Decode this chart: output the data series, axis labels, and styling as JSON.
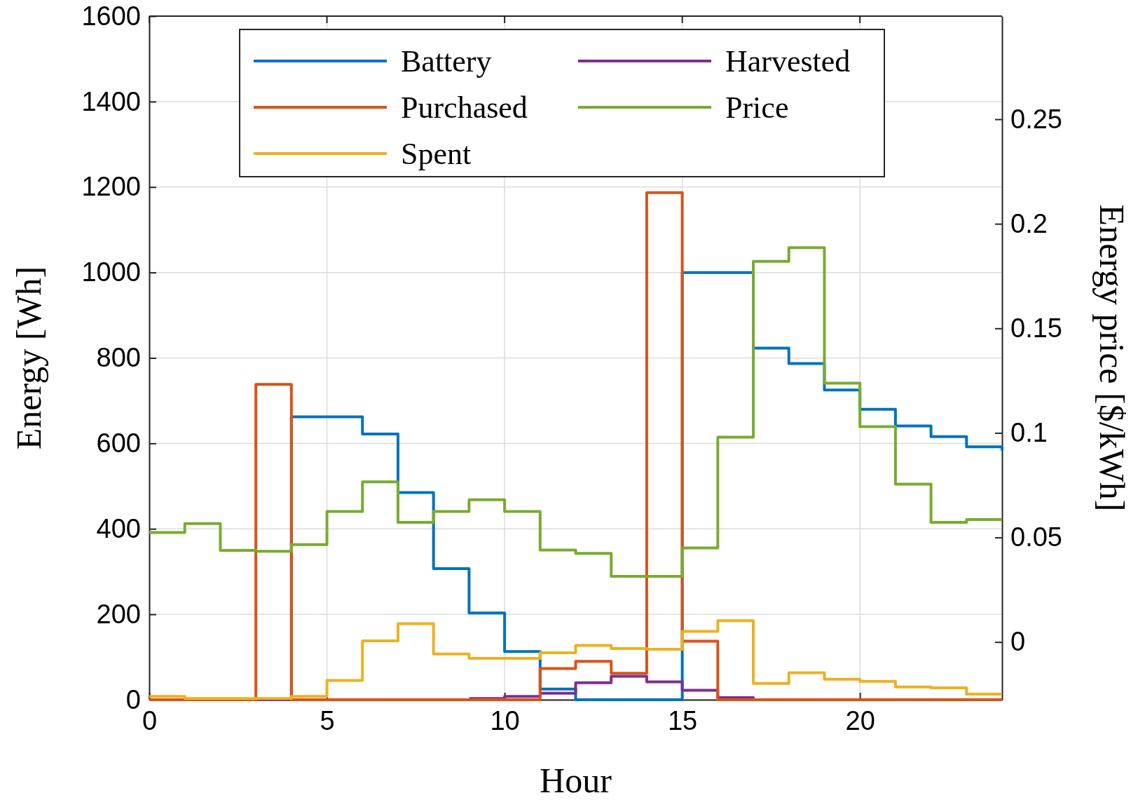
{
  "chart_data": {
    "type": "step",
    "xlabel": "Hour",
    "ylabel": "Energy [Wh]",
    "y2label": "Energy price [$/kWh]",
    "x": [
      0,
      1,
      2,
      3,
      4,
      5,
      6,
      7,
      8,
      9,
      10,
      11,
      12,
      13,
      14,
      15,
      16,
      17,
      18,
      19,
      20,
      21,
      22,
      23,
      24
    ],
    "xlim": [
      0,
      24
    ],
    "xticks": [
      0,
      5,
      10,
      15,
      20
    ],
    "ylim": [
      0,
      1600
    ],
    "yticks": [
      0,
      200,
      400,
      600,
      800,
      1000,
      1200,
      1400,
      1600
    ],
    "y2lim": [
      -0.0276,
      0.2993
    ],
    "y2ticks": [
      0,
      0.05,
      0.1,
      0.15,
      0.2,
      0.25
    ],
    "grid": true,
    "legend": "top",
    "line_style": "solid",
    "series": [
      {
        "name": "Battery",
        "color": "#0072bd",
        "values": [
          null,
          null,
          null,
          0,
          662,
          662,
          622,
          485,
          307,
          203,
          113,
          25,
          0,
          0,
          0,
          1000,
          1000,
          823,
          787,
          725,
          680,
          641,
          616,
          592,
          583
        ]
      },
      {
        "name": "Harvested",
        "color": "#7e2f8e",
        "values": [
          null,
          null,
          null,
          0,
          0,
          null,
          null,
          null,
          null,
          3,
          8,
          15,
          40,
          55,
          42,
          22,
          5,
          0,
          null,
          null,
          null,
          null,
          null,
          null,
          null
        ]
      },
      {
        "name": "Purchased",
        "color": "#d95319",
        "values": [
          0,
          0,
          0,
          738,
          0,
          0,
          0,
          0,
          0,
          0,
          0,
          73,
          90,
          62,
          1187,
          137,
          0,
          0,
          0,
          0,
          0,
          0,
          0,
          0,
          0
        ]
      },
      {
        "name": "Price",
        "color": "#77ac30",
        "axis": "y2",
        "values": [
          0.0524,
          0.0566,
          0.0438,
          0.0434,
          0.0466,
          0.0624,
          0.0766,
          0.0572,
          0.0624,
          0.068,
          0.0624,
          0.044,
          0.0424,
          0.0314,
          0.0314,
          0.045,
          0.098,
          0.182,
          0.1886,
          0.1238,
          0.103,
          0.0755,
          0.0572,
          0.0586,
          0.0586
        ]
      },
      {
        "name": "Spent",
        "color": "#edb120",
        "values": [
          8,
          3,
          3,
          3,
          8,
          45,
          138,
          178,
          107,
          97,
          97,
          110,
          127,
          120,
          118,
          160,
          185,
          38,
          63,
          48,
          43,
          30,
          28,
          13,
          13
        ]
      }
    ]
  }
}
